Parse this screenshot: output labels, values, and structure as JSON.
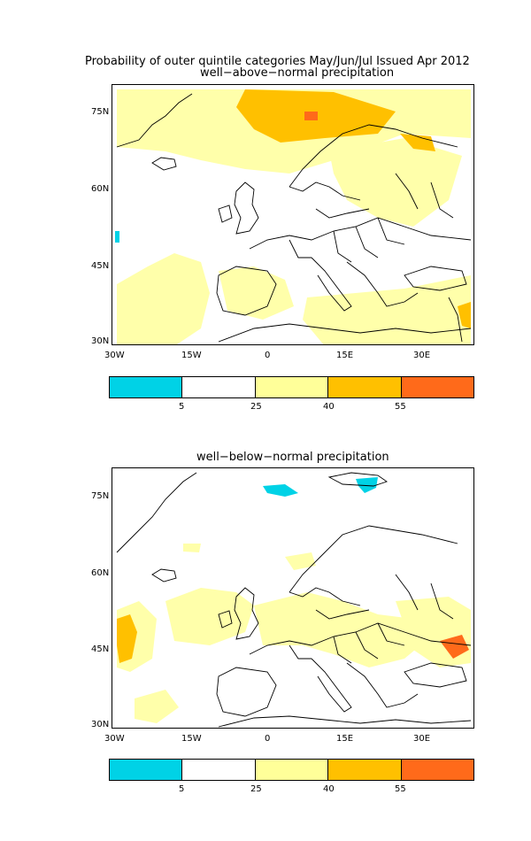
{
  "main_title": "Probability of outer quintile categories May/Jun/Jul Issued Apr 2012",
  "panels": [
    {
      "subtitle": "well−above−normal precipitation",
      "lat_ticks": [
        "75N",
        "60N",
        "45N",
        "30N"
      ],
      "lon_ticks": [
        "30W",
        "15W",
        "0",
        "15E",
        "30E"
      ]
    },
    {
      "subtitle": "well−below−normal precipitation",
      "lat_ticks": [
        "75N",
        "60N",
        "45N",
        "30N"
      ],
      "lon_ticks": [
        "30W",
        "15W",
        "0",
        "15E",
        "30E"
      ]
    }
  ],
  "colorbar": {
    "labels": [
      "5",
      "25",
      "40",
      "55"
    ],
    "colors": [
      "#00d2e6",
      "#ffffff",
      "#ffff99",
      "#ffc000",
      "#ff6a1a"
    ]
  },
  "map_colors": {
    "light_yellow": "#ffffaa",
    "orange": "#ffc000",
    "red_orange": "#ff6a1a",
    "cyan": "#00d2e6"
  }
}
